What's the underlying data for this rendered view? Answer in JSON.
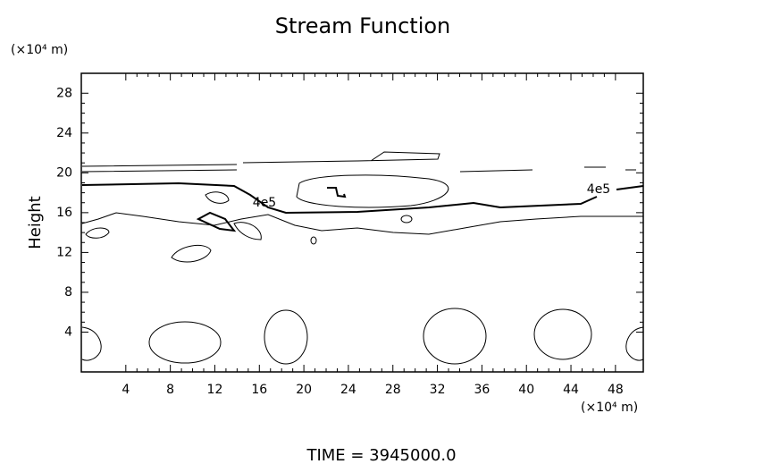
{
  "chart_data": {
    "type": "contour",
    "title": "Stream Function",
    "x_unit": "(×10⁴ m)",
    "y_unit": "(×10⁴ m)",
    "ylabel": "Height",
    "footer": "TIME  =  3945000.0",
    "contour_labels": [
      "4e5",
      "4e5"
    ],
    "xlim": [
      0,
      50.5
    ],
    "xticks": [
      4,
      8,
      12,
      16,
      20,
      24,
      28,
      32,
      36,
      40,
      44,
      48
    ],
    "ylim": [
      0,
      30
    ],
    "yticks": [
      4,
      8,
      12,
      16,
      20,
      24,
      28
    ]
  }
}
